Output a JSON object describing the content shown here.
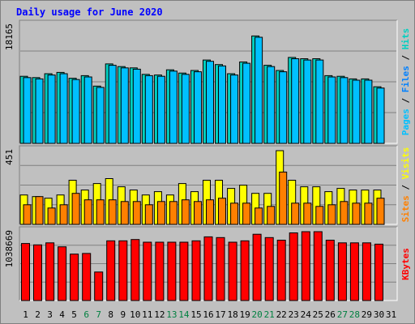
{
  "title": "Daily usage for June 2020",
  "colors": {
    "title": "#0000ff",
    "pages": "#00c0ff",
    "files": "#0080ff",
    "hits": "#00d0c0",
    "sites": "#ff8000",
    "visits": "#ffff00",
    "kbytes": "#ff0000",
    "weekend": "#008040",
    "weekday": "#000000"
  },
  "chart_data": [
    {
      "type": "bar",
      "panel": "hits-files-pages",
      "ymax_label": "18165",
      "ymax": 18165,
      "legend": [
        {
          "text": "Pages",
          "color": "#00c0ff"
        },
        {
          "text": " / ",
          "color": "#000000"
        },
        {
          "text": "Files",
          "color": "#0080ff"
        },
        {
          "text": " / ",
          "color": "#000000"
        },
        {
          "text": "Hits",
          "color": "#00d0c0"
        }
      ],
      "x": [
        1,
        2,
        3,
        4,
        5,
        6,
        7,
        8,
        9,
        10,
        11,
        12,
        13,
        14,
        15,
        16,
        17,
        18,
        19,
        20,
        21,
        22,
        23,
        24,
        25,
        26,
        27,
        28,
        29,
        30,
        31
      ],
      "series": [
        {
          "name": "Hits",
          "values": [
            10300,
            10100,
            10700,
            10900,
            10000,
            10400,
            8800,
            12200,
            11800,
            11600,
            10600,
            10500,
            11300,
            10800,
            11200,
            12800,
            12100,
            10700,
            12500,
            16500,
            12000,
            11200,
            13200,
            13000,
            13000,
            10400,
            10300,
            9900,
            9900,
            8700,
            0
          ]
        },
        {
          "name": "Pages",
          "values": [
            10100,
            9900,
            10500,
            10700,
            9800,
            10200,
            8600,
            12000,
            11600,
            11400,
            10400,
            10300,
            11100,
            10600,
            11000,
            12600,
            11900,
            10500,
            12300,
            16300,
            11800,
            11000,
            13000,
            12800,
            12800,
            10200,
            10100,
            9700,
            9700,
            8500,
            0
          ]
        }
      ]
    },
    {
      "type": "bar",
      "panel": "visits-sites",
      "ymax_label": "451",
      "ymax": 451,
      "legend": [
        {
          "text": "Sites",
          "color": "#ff8000"
        },
        {
          "text": " / ",
          "color": "#000000"
        },
        {
          "text": "Visits",
          "color": "#ffff00"
        }
      ],
      "x": [
        1,
        2,
        3,
        4,
        5,
        6,
        7,
        8,
        9,
        10,
        11,
        12,
        13,
        14,
        15,
        16,
        17,
        18,
        19,
        20,
        21,
        22,
        23,
        24,
        25,
        26,
        27,
        28,
        29,
        30,
        31
      ],
      "series": [
        {
          "name": "Visits",
          "values": [
            180,
            170,
            160,
            180,
            270,
            210,
            250,
            280,
            230,
            210,
            180,
            200,
            180,
            250,
            200,
            270,
            270,
            220,
            240,
            190,
            190,
            451,
            270,
            230,
            230,
            200,
            220,
            210,
            210,
            210,
            0
          ]
        },
        {
          "name": "Sites",
          "values": [
            120,
            170,
            100,
            120,
            190,
            150,
            150,
            150,
            140,
            140,
            120,
            140,
            140,
            150,
            140,
            150,
            160,
            130,
            130,
            100,
            110,
            320,
            130,
            130,
            110,
            120,
            140,
            130,
            130,
            160,
            0
          ]
        }
      ]
    },
    {
      "type": "bar",
      "panel": "kbytes",
      "ymax_label": "1038669",
      "ymax": 1038669,
      "legend": [
        {
          "text": "KBytes",
          "color": "#ff0000"
        }
      ],
      "x": [
        1,
        2,
        3,
        4,
        5,
        6,
        7,
        8,
        9,
        10,
        11,
        12,
        13,
        14,
        15,
        16,
        17,
        18,
        19,
        20,
        21,
        22,
        23,
        24,
        25,
        26,
        27,
        28,
        29,
        30,
        31
      ],
      "series": [
        {
          "name": "KBytes",
          "values": [
            860000,
            840000,
            870000,
            810000,
            700000,
            710000,
            430000,
            900000,
            900000,
            920000,
            880000,
            880000,
            880000,
            880000,
            900000,
            960000,
            950000,
            880000,
            900000,
            1000000,
            950000,
            910000,
            1020000,
            1038669,
            1038669,
            910000,
            870000,
            870000,
            870000,
            850000,
            0
          ]
        }
      ]
    }
  ],
  "x_labels": [
    {
      "text": "1",
      "weekend": false
    },
    {
      "text": "2",
      "weekend": false
    },
    {
      "text": "3",
      "weekend": false
    },
    {
      "text": "4",
      "weekend": false
    },
    {
      "text": "5",
      "weekend": false
    },
    {
      "text": "6",
      "weekend": true
    },
    {
      "text": "7",
      "weekend": true
    },
    {
      "text": "8",
      "weekend": false
    },
    {
      "text": "9",
      "weekend": false
    },
    {
      "text": "10",
      "weekend": false
    },
    {
      "text": "11",
      "weekend": false
    },
    {
      "text": "12",
      "weekend": false
    },
    {
      "text": "13",
      "weekend": true
    },
    {
      "text": "14",
      "weekend": true
    },
    {
      "text": "15",
      "weekend": false
    },
    {
      "text": "16",
      "weekend": false
    },
    {
      "text": "17",
      "weekend": false
    },
    {
      "text": "18",
      "weekend": false
    },
    {
      "text": "19",
      "weekend": false
    },
    {
      "text": "20",
      "weekend": true
    },
    {
      "text": "21",
      "weekend": true
    },
    {
      "text": "22",
      "weekend": false
    },
    {
      "text": "23",
      "weekend": false
    },
    {
      "text": "24",
      "weekend": false
    },
    {
      "text": "25",
      "weekend": false
    },
    {
      "text": "26",
      "weekend": false
    },
    {
      "text": "27",
      "weekend": true
    },
    {
      "text": "28",
      "weekend": true
    },
    {
      "text": "29",
      "weekend": false
    },
    {
      "text": "30",
      "weekend": false
    },
    {
      "text": "31",
      "weekend": false
    }
  ]
}
